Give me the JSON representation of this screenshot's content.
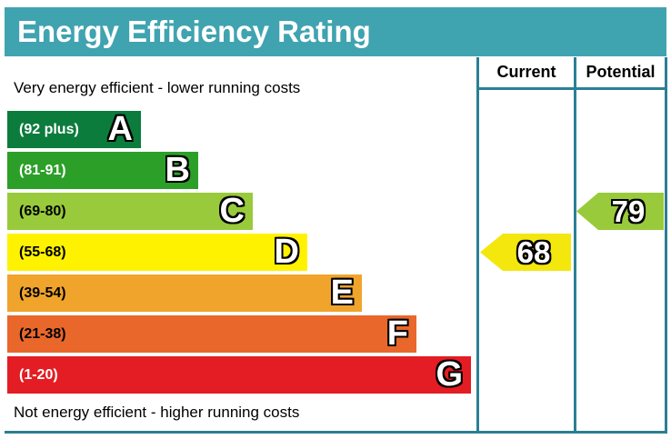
{
  "title": "Energy Efficiency Rating",
  "captions": {
    "top": "Very energy efficient - lower running costs",
    "bottom": "Not energy efficient - higher running costs"
  },
  "columns": {
    "current": "Current",
    "potential": "Potential"
  },
  "bands": [
    {
      "letter": "A",
      "range": "(92 plus)",
      "color": "#0c7c3d",
      "text_color": "#ffffff"
    },
    {
      "letter": "B",
      "range": "(81-91)",
      "color": "#2c9f29",
      "text_color": "#ffffff"
    },
    {
      "letter": "C",
      "range": "(69-80)",
      "color": "#99ca3b",
      "text_color": "#000000"
    },
    {
      "letter": "D",
      "range": "(55-68)",
      "color": "#fff200",
      "text_color": "#000000"
    },
    {
      "letter": "E",
      "range": "(39-54)",
      "color": "#f0a42c",
      "text_color": "#000000"
    },
    {
      "letter": "F",
      "range": "(21-38)",
      "color": "#e9672b",
      "text_color": "#000000"
    },
    {
      "letter": "G",
      "range": "(1-20)",
      "color": "#e31d23",
      "text_color": "#ffffff"
    }
  ],
  "ratings": {
    "current": {
      "value": "68",
      "band": "D",
      "color": "#f3e70e"
    },
    "potential": {
      "value": "79",
      "band": "C",
      "color": "#99ca3b"
    }
  },
  "colors": {
    "title_bg": "#40a3b0",
    "title_text": "#ffffff",
    "table_border": "#2b7f94"
  },
  "chart_data": {
    "type": "bar",
    "title": "Energy Efficiency Rating",
    "categories": [
      "A",
      "B",
      "C",
      "D",
      "E",
      "F",
      "G"
    ],
    "band_ranges": [
      "92 plus",
      "81-91",
      "69-80",
      "55-68",
      "39-54",
      "21-38",
      "1-20"
    ],
    "band_colors": [
      "#0c7c3d",
      "#2c9f29",
      "#99ca3b",
      "#fff200",
      "#f0a42c",
      "#e9672b",
      "#e31d23"
    ],
    "series": [
      {
        "name": "Current",
        "value": 68,
        "band": "D"
      },
      {
        "name": "Potential",
        "value": 79,
        "band": "C"
      }
    ],
    "value_range": [
      1,
      100
    ],
    "legend_position": "top-right-columns",
    "notes_top": "Very energy efficient - lower running costs",
    "notes_bottom": "Not energy efficient - higher running costs"
  }
}
